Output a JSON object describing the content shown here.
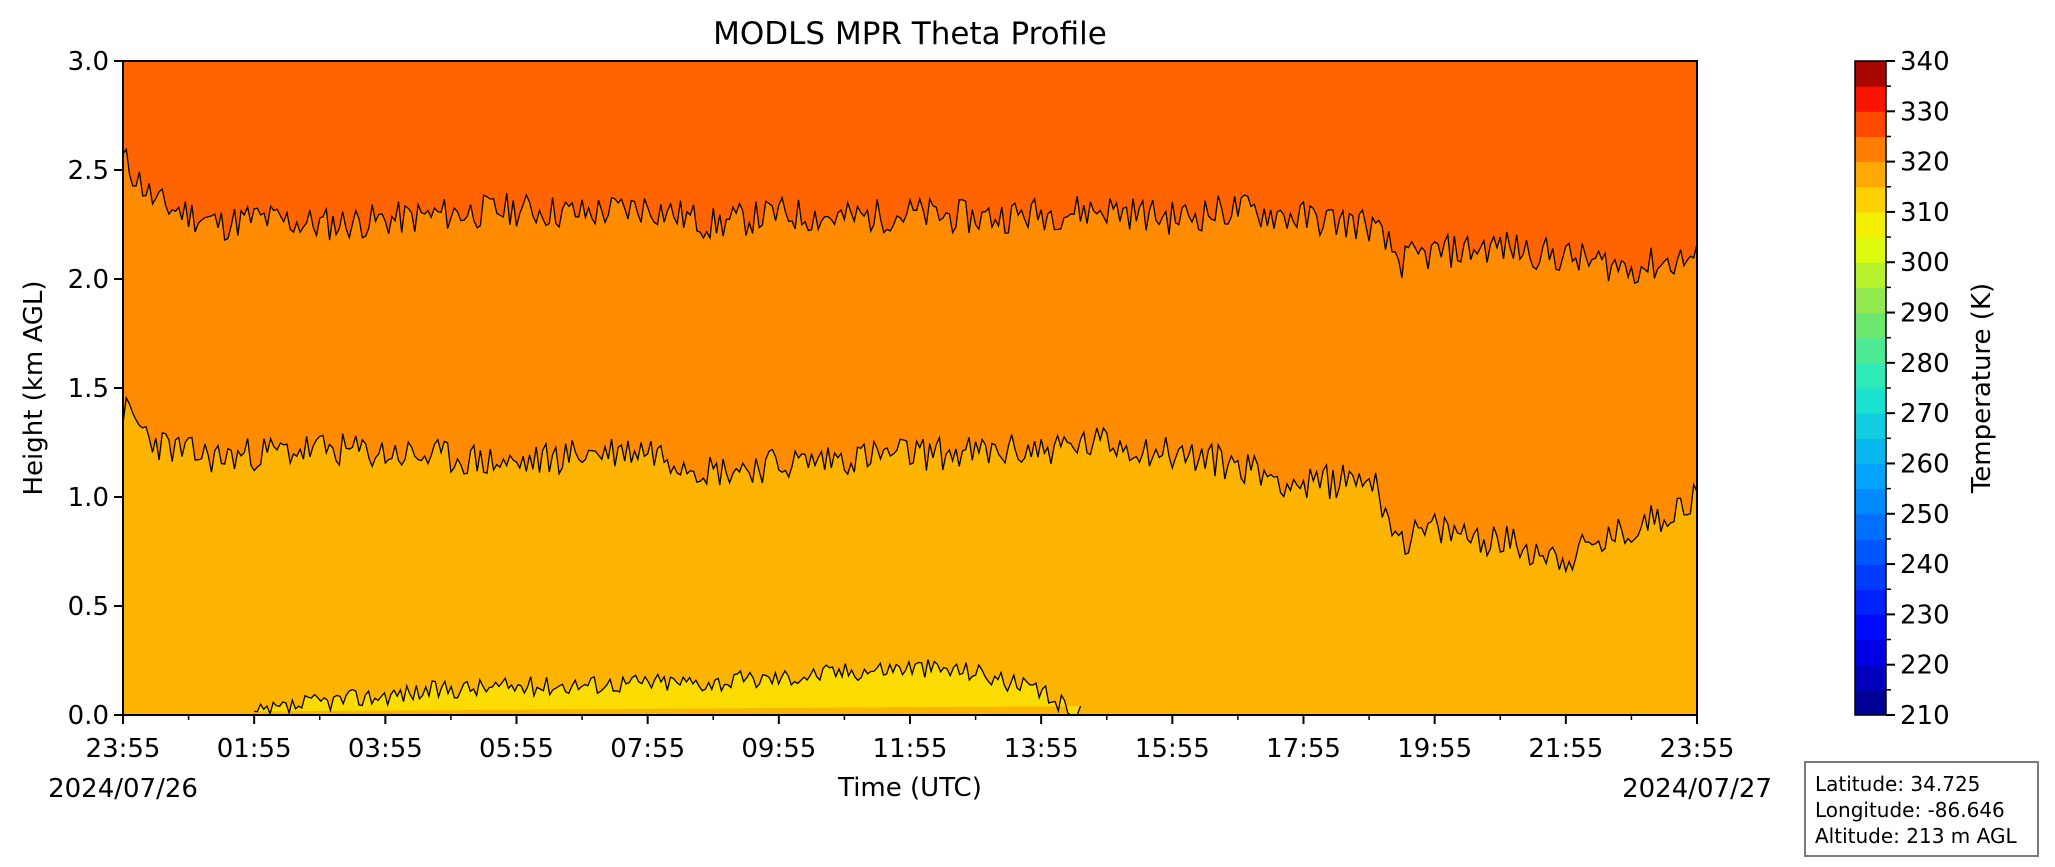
{
  "chart_data": {
    "type": "heatmap",
    "title": "MODLS MPR Theta Profile",
    "xlabel": "Time (UTC)",
    "ylabel": "Height (km AGL)",
    "x_tick_labels": [
      "23:55",
      "01:55",
      "03:55",
      "05:55",
      "07:55",
      "09:55",
      "11:55",
      "13:55",
      "15:55",
      "17:55",
      "19:55",
      "21:55",
      "23:55"
    ],
    "x_hours": [
      0,
      2,
      4,
      6,
      8,
      10,
      12,
      14,
      16,
      18,
      20,
      22,
      24
    ],
    "x_date_left": "2024/07/26",
    "x_date_right": "2024/07/27",
    "ylim": [
      0.0,
      3.0
    ],
    "y_ticks": [
      0.0,
      0.5,
      1.0,
      1.5,
      2.0,
      2.5,
      3.0
    ],
    "y_tick_labels": [
      "0.0",
      "0.5",
      "1.0",
      "1.5",
      "2.0",
      "2.5",
      "3.0"
    ],
    "colorbar": {
      "label": "Temperature (K)",
      "range": [
        210,
        340
      ],
      "step": 5,
      "ticks": [
        210,
        220,
        230,
        240,
        250,
        260,
        270,
        280,
        290,
        300,
        310,
        320,
        330,
        340
      ],
      "tick_labels": [
        "210",
        "220",
        "230",
        "240",
        "250",
        "260",
        "270",
        "280",
        "290",
        "300",
        "310",
        "320",
        "330",
        "340"
      ]
    },
    "contour_levels_K": [
      300,
      305,
      310
    ],
    "bands": [
      {
        "range_K": "300-305",
        "color": "#fadc00"
      },
      {
        "range_K": "305-310",
        "color": "#fdb400"
      },
      {
        "range_K": "310-315",
        "color": "#ff8c00"
      },
      {
        "range_K": "315-320",
        "color": "#ff6400"
      }
    ],
    "contour_310_km": {
      "hours": [
        0,
        0.5,
        1,
        1.5,
        2,
        3,
        4,
        5,
        6,
        7,
        8,
        9,
        10,
        11,
        12,
        13,
        14,
        15,
        16,
        17,
        18,
        19,
        19.5,
        20,
        21,
        22,
        23,
        24
      ],
      "height": [
        2.55,
        2.35,
        2.3,
        2.25,
        2.28,
        2.25,
        2.27,
        2.3,
        2.32,
        2.3,
        2.33,
        2.25,
        2.3,
        2.28,
        2.3,
        2.28,
        2.3,
        2.32,
        2.28,
        2.32,
        2.28,
        2.25,
        2.08,
        2.12,
        2.15,
        2.1,
        2.05,
        2.1
      ]
    },
    "contour_305_km": {
      "hours": [
        0,
        0.5,
        1,
        1.5,
        2,
        3,
        4,
        5,
        6,
        7,
        8,
        9,
        10,
        11,
        12,
        13,
        14,
        15,
        16,
        17,
        18,
        19,
        19.5,
        20,
        21,
        22,
        23,
        24
      ],
      "height": [
        1.4,
        1.25,
        1.2,
        1.18,
        1.2,
        1.22,
        1.2,
        1.18,
        1.15,
        1.2,
        1.22,
        1.12,
        1.15,
        1.18,
        1.2,
        1.2,
        1.22,
        1.25,
        1.2,
        1.15,
        1.05,
        1.1,
        0.8,
        0.85,
        0.8,
        0.72,
        0.85,
        1.0
      ]
    },
    "contour_300_km": {
      "hours": [
        2,
        2.5,
        3,
        4,
        5,
        6,
        7,
        8,
        9,
        10,
        11,
        12,
        13,
        14,
        14.6
      ],
      "height": [
        0.0,
        0.03,
        0.06,
        0.09,
        0.12,
        0.13,
        0.14,
        0.15,
        0.15,
        0.17,
        0.2,
        0.22,
        0.2,
        0.1,
        0.0
      ]
    },
    "grid": false
  },
  "info": {
    "latitude": "Latitude: 34.725",
    "longitude": "Longitude: -86.646",
    "altitude": "Altitude: 213 m AGL"
  }
}
